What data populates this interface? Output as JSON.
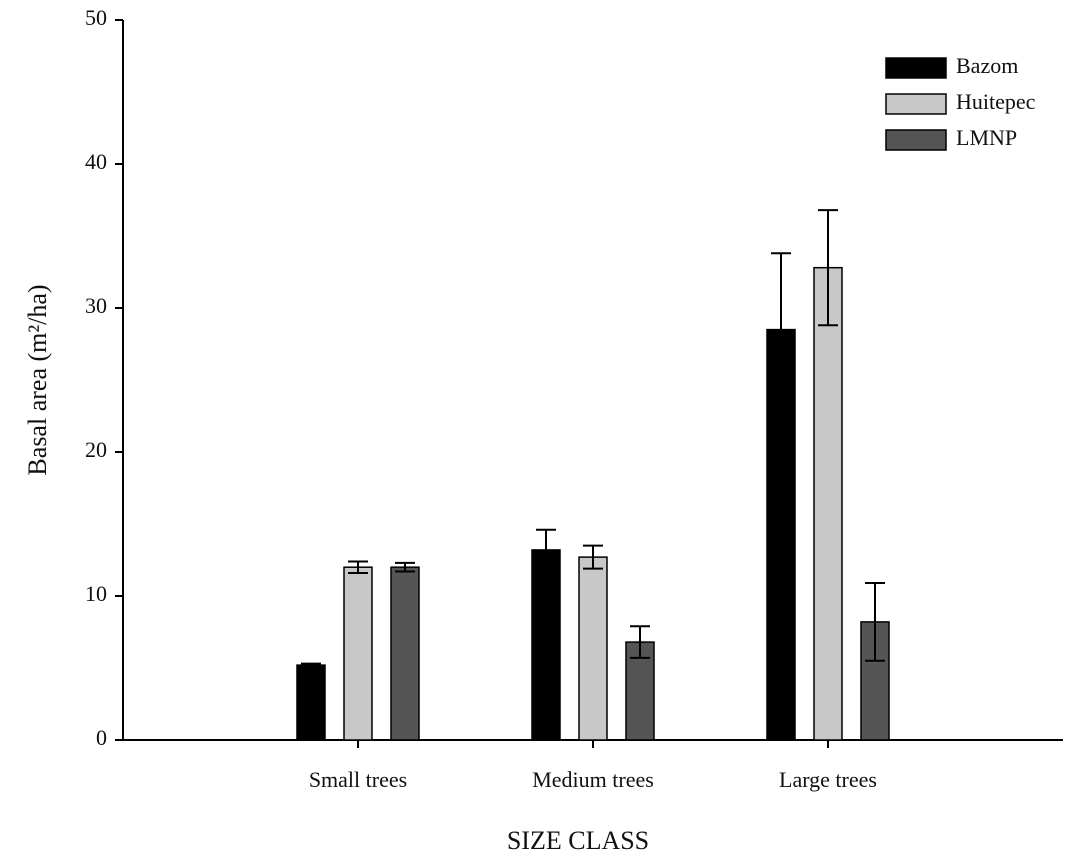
{
  "chart_data": {
    "type": "bar",
    "y_label": "Basal area (m²/ha)",
    "x_label": "SIZE CLASS",
    "categories": [
      "Small trees",
      "Medium trees",
      "Large trees"
    ],
    "series": [
      {
        "name": "Bazom",
        "color": "#000000",
        "values": [
          5.2,
          13.2,
          28.5
        ],
        "errors": [
          0.1,
          1.4,
          5.3
        ]
      },
      {
        "name": "Huitepec",
        "color": "#c8c8c8",
        "values": [
          12.0,
          12.7,
          32.8
        ],
        "errors": [
          0.4,
          0.8,
          4.0
        ]
      },
      {
        "name": "LMNP",
        "color": "#555555",
        "values": [
          12.0,
          6.8,
          8.2
        ],
        "errors": [
          0.3,
          1.1,
          2.7
        ]
      }
    ],
    "ylim": [
      0,
      50
    ],
    "yticks": [
      0,
      10,
      20,
      30,
      40,
      50
    ],
    "grid": false,
    "legend": "upper right"
  }
}
